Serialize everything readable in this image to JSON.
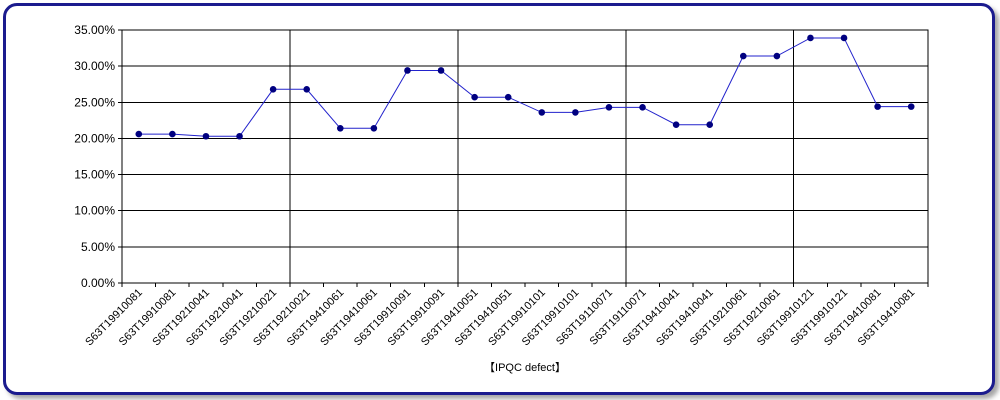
{
  "chart_data": {
    "type": "line",
    "categories": [
      "S63T19910081",
      "S63T19910081",
      "S63T19210041",
      "S63T19210041",
      "S63T19210021",
      "S63T19210021",
      "S63T19410061",
      "S63T19410061",
      "S63T19910091",
      "S63T19910091",
      "S63T19410051",
      "S63T19410051",
      "S63T19910101",
      "S63T19910101",
      "S63T19110071",
      "S63T19110071",
      "S63T19410041",
      "S63T19410041",
      "S63T19210061",
      "S63T19210061",
      "S63T19910121",
      "S63T19910121",
      "S63T19410081",
      "S63T19410081"
    ],
    "series": [
      {
        "values": [
          20.6,
          20.6,
          20.3,
          20.3,
          26.8,
          26.8,
          21.4,
          21.4,
          29.4,
          29.4,
          25.7,
          25.7,
          23.6,
          23.6,
          24.3,
          24.3,
          21.9,
          21.9,
          31.4,
          31.4,
          33.9,
          33.9,
          24.4,
          24.4
        ]
      }
    ],
    "yticks": [
      "0.00%",
      "5.00%",
      "10.00%",
      "15.00%",
      "20.00%",
      "25.00%",
      "30.00%",
      "35.00%"
    ],
    "ylim": [
      0,
      35
    ],
    "xlabel": "【IPQC defect】",
    "grid": true,
    "line_color": "#2222cc",
    "marker_color": "#000080"
  }
}
